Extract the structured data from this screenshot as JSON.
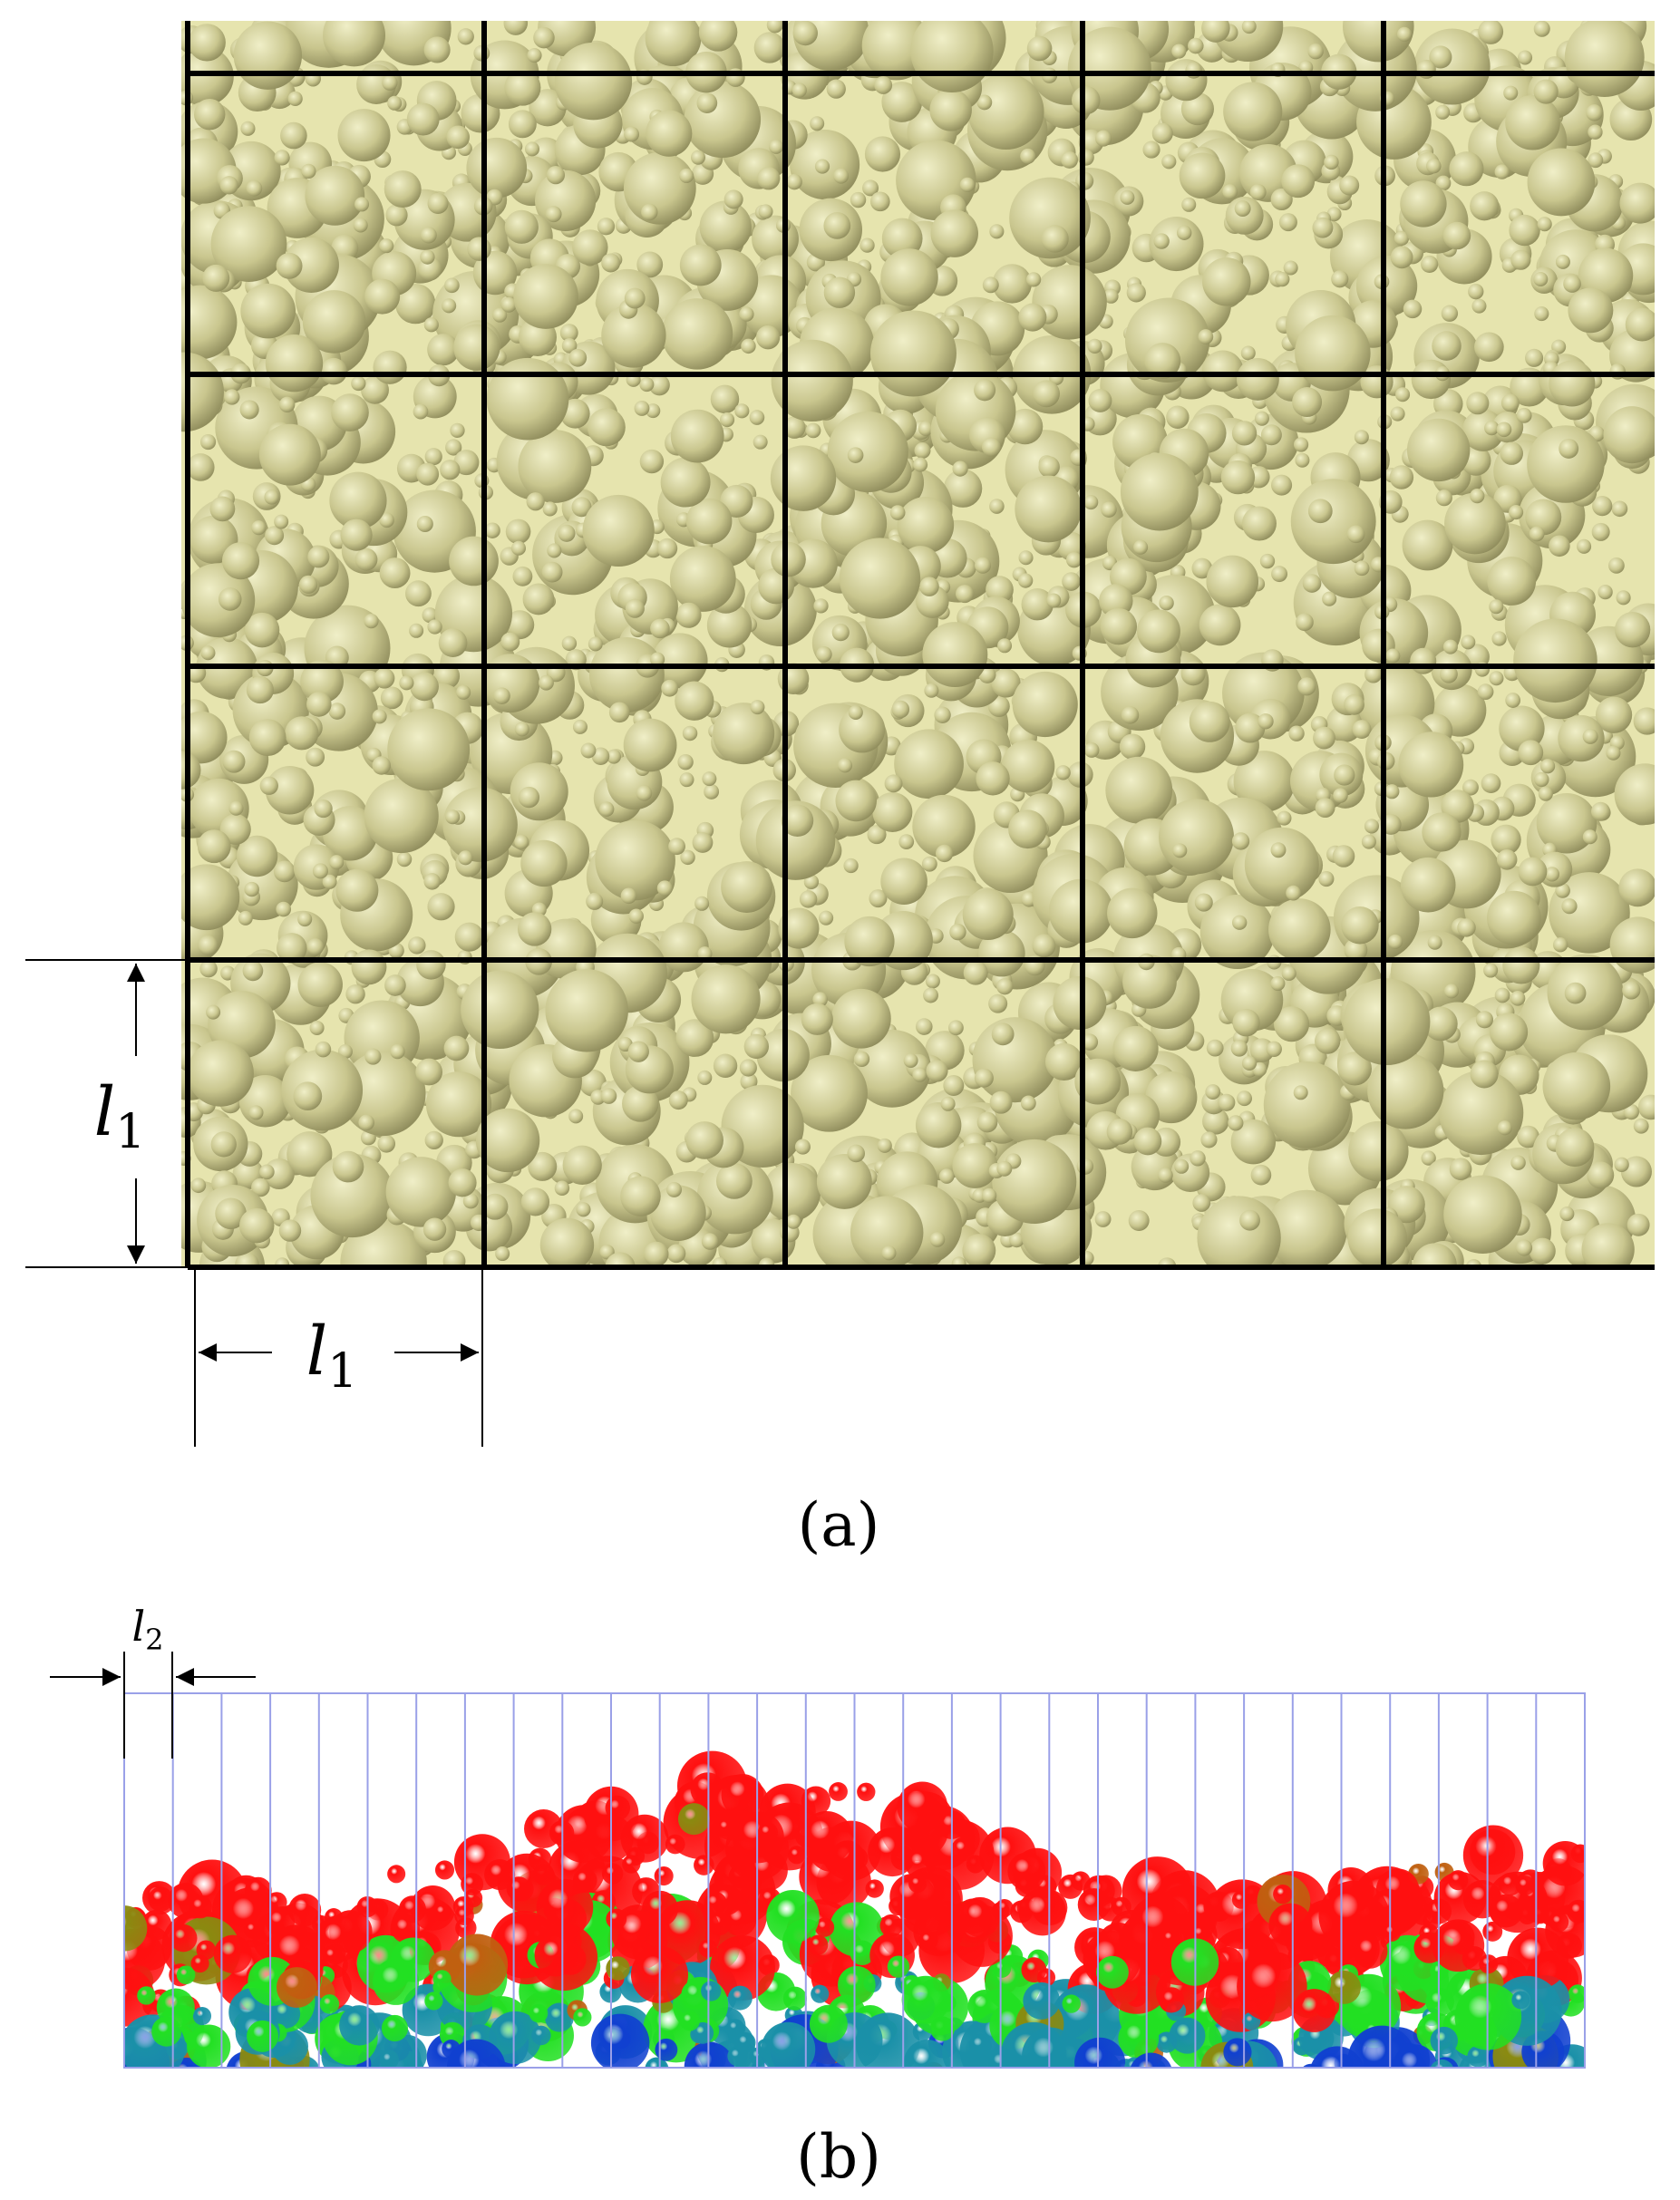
{
  "panel_a": {
    "width_label": {
      "symbol": "l",
      "subscript": "1"
    },
    "height_label": {
      "symbol": "l",
      "subscript": "1"
    },
    "caption": "(a)"
  },
  "panel_b": {
    "width_label": {
      "symbol": "l",
      "subscript": "2"
    },
    "caption": "(b)"
  }
}
